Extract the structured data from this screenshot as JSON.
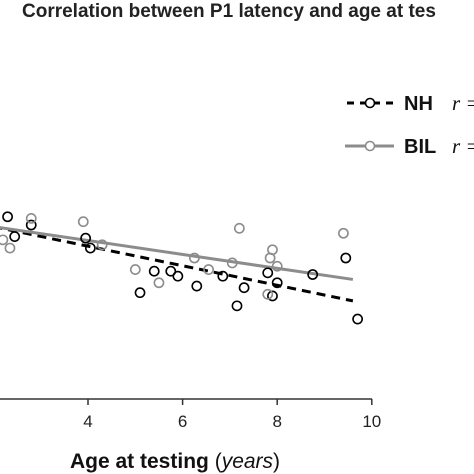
{
  "chart_data": {
    "type": "scatter",
    "title": "Correlation between P1 latency and age at tes",
    "xlabel_main": "Age at testing ",
    "xlabel_unit": "(years)",
    "xlabel_open": "(",
    "xlabel_unit_text": "years",
    "xlabel_close": ")",
    "xlim": [
      2,
      10.5
    ],
    "x_ticks": [
      4,
      6,
      8,
      10
    ],
    "grid": false,
    "legend_position": "top-right",
    "legend": [
      {
        "label": "NH",
        "r_text": "r =",
        "line_style": "dashed",
        "color": "#000000"
      },
      {
        "label": "BIL",
        "r_text": "r =",
        "line_style": "solid",
        "color": "#8c8c8c"
      }
    ],
    "series": [
      {
        "name": "NH",
        "color": "#000000",
        "points": [
          [
            2.0,
            0.95
          ],
          [
            2.3,
            1.25
          ],
          [
            2.45,
            0.65
          ],
          [
            2.8,
            1.0
          ],
          [
            3.95,
            0.6
          ],
          [
            4.05,
            0.3
          ],
          [
            5.1,
            -1.05
          ],
          [
            5.4,
            -0.4
          ],
          [
            5.75,
            -0.4
          ],
          [
            5.9,
            -0.55
          ],
          [
            6.3,
            -0.85
          ],
          [
            6.85,
            -0.55
          ],
          [
            7.15,
            -1.45
          ],
          [
            7.3,
            -0.9
          ],
          [
            7.8,
            -0.45
          ],
          [
            7.9,
            -1.15
          ],
          [
            8.0,
            -0.75
          ],
          [
            8.75,
            -0.5
          ],
          [
            9.45,
            0.0
          ],
          [
            9.7,
            -1.85
          ]
        ],
        "fit": [
          [
            2.0,
            0.95
          ],
          [
            9.6,
            -1.3
          ]
        ]
      },
      {
        "name": "BIL",
        "color": "#8c8c8c",
        "points": [
          [
            2.2,
            0.55
          ],
          [
            2.35,
            0.3
          ],
          [
            2.8,
            1.2
          ],
          [
            3.9,
            1.1
          ],
          [
            4.3,
            0.4
          ],
          [
            5.0,
            -0.35
          ],
          [
            5.5,
            -0.75
          ],
          [
            6.25,
            0.0
          ],
          [
            6.55,
            -0.35
          ],
          [
            7.05,
            -0.15
          ],
          [
            7.2,
            0.9
          ],
          [
            7.8,
            -1.1
          ],
          [
            7.85,
            0.0
          ],
          [
            7.9,
            0.25
          ],
          [
            8.0,
            -0.25
          ],
          [
            9.4,
            0.75
          ]
        ],
        "fit": [
          [
            2.0,
            0.95
          ],
          [
            9.6,
            -0.65
          ]
        ]
      }
    ]
  }
}
